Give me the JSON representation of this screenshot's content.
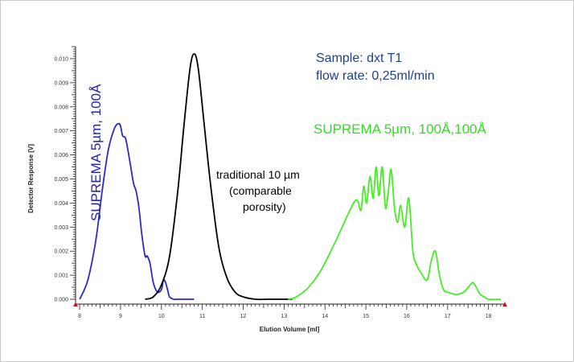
{
  "chart_data": {
    "type": "line",
    "xlabel": "Elution Volume [ml]",
    "ylabel": "Detector Response [V]",
    "xlim": [
      7.9,
      18.4
    ],
    "ylim": [
      -0.0002,
      0.0105
    ],
    "x_ticks": [
      "8",
      "9",
      "10",
      "11",
      "12",
      "13",
      "14",
      "15",
      "16",
      "17",
      "18"
    ],
    "y_ticks": [
      "0.000",
      "0.001",
      "0.002",
      "0.003",
      "0.004",
      "0.005",
      "0.006",
      "0.007",
      "0.008",
      "0.009",
      "0.010"
    ],
    "annotations": {
      "sample": "Sample: dxt T1",
      "flow_rate": "flow rate: 0,25ml/min",
      "green_label": "SUPREMA 5µm, 100Å,100Å",
      "blue_label": "SUPREMA 5µm, 100Å",
      "black_label_1": "traditional 10 µm",
      "black_label_2": "(comparable",
      "black_label_3": "porosity)"
    },
    "colors": {
      "blue": "#2a2acc",
      "black": "#000000",
      "green": "#44ee22"
    },
    "series": [
      {
        "color": "#2a2acc",
        "x": [
          8.0,
          8.2,
          8.4,
          8.55,
          8.7,
          8.85,
          8.95,
          9.0,
          9.05,
          9.12,
          9.18,
          9.25,
          9.32,
          9.38,
          9.45,
          9.52,
          9.6,
          9.65,
          9.72,
          9.8,
          9.9,
          10.0,
          10.05,
          10.1,
          10.15,
          10.2,
          10.3,
          10.4,
          10.6,
          10.8
        ],
        "y": [
          0.0,
          0.0008,
          0.0025,
          0.0045,
          0.0062,
          0.0071,
          0.0073,
          0.0072,
          0.0068,
          0.0067,
          0.0062,
          0.0055,
          0.0048,
          0.0045,
          0.0038,
          0.0027,
          0.0018,
          0.0018,
          0.0015,
          0.0007,
          0.0003,
          0.0004,
          0.0008,
          0.0007,
          0.0004,
          0.0001,
          0.0,
          0.0,
          0.0,
          0.0
        ]
      },
      {
        "color": "#000000",
        "x": [
          9.6,
          9.8,
          10.0,
          10.2,
          10.4,
          10.55,
          10.7,
          10.8,
          10.9,
          11.05,
          11.2,
          11.4,
          11.6,
          11.8,
          12.0,
          12.3,
          12.6,
          13.0,
          13.2
        ],
        "y": [
          0.0,
          0.0001,
          0.0006,
          0.0018,
          0.0045,
          0.0072,
          0.0096,
          0.0102,
          0.0096,
          0.0072,
          0.0048,
          0.0022,
          0.0009,
          0.0003,
          0.0001,
          0.0,
          0.0,
          0.0,
          0.0
        ]
      },
      {
        "color": "#44ee22",
        "x": [
          13.1,
          13.3,
          13.6,
          13.9,
          14.2,
          14.5,
          14.7,
          14.8,
          14.88,
          14.95,
          15.02,
          15.1,
          15.18,
          15.25,
          15.32,
          15.4,
          15.48,
          15.55,
          15.62,
          15.7,
          15.78,
          15.85,
          15.95,
          16.05,
          16.15,
          16.25,
          16.35,
          16.5,
          16.6,
          16.7,
          16.8,
          16.9,
          17.0,
          17.2,
          17.4,
          17.55,
          17.62,
          17.7,
          17.8,
          17.9,
          18.0,
          18.3
        ],
        "y": [
          0.0,
          0.0001,
          0.0005,
          0.0012,
          0.0022,
          0.0033,
          0.004,
          0.0041,
          0.0037,
          0.0047,
          0.004,
          0.0051,
          0.0042,
          0.0055,
          0.0043,
          0.0055,
          0.0038,
          0.0045,
          0.0054,
          0.0038,
          0.0032,
          0.0039,
          0.003,
          0.0042,
          0.002,
          0.0014,
          0.0011,
          0.0008,
          0.0016,
          0.002,
          0.001,
          0.0004,
          0.0003,
          0.0002,
          0.0003,
          0.0006,
          0.0007,
          0.0005,
          0.0002,
          0.0001,
          0.0,
          0.0
        ]
      }
    ]
  }
}
